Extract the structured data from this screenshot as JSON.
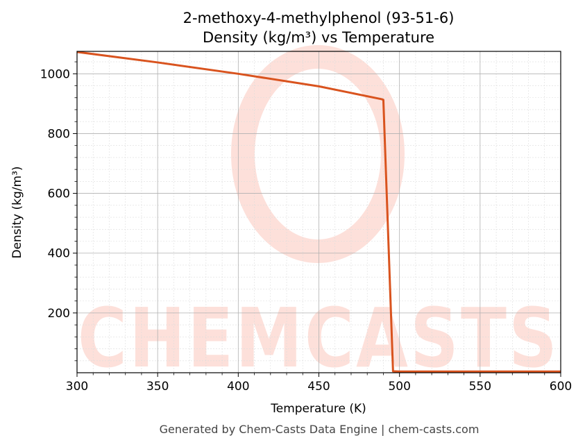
{
  "chart_data": {
    "type": "line",
    "title_line1": "2-methoxy-4-methylphenol (93-51-6)",
    "title_line2": "Density (kg/m³) vs Temperature",
    "xlabel": "Temperature (K)",
    "ylabel": "Density (kg/m³)",
    "xlim": [
      300,
      600
    ],
    "ylim": [
      0,
      1075
    ],
    "xticks": [
      300,
      350,
      400,
      450,
      500,
      550,
      600
    ],
    "yticks": [
      200,
      400,
      600,
      800,
      1000
    ],
    "grid": true,
    "line_color": "#d9531e",
    "series": [
      {
        "x": [
          300,
          350,
          400,
          450,
          489,
          490,
          496,
          500,
          550,
          600
        ],
        "y": [
          1073,
          1038,
          1000,
          958,
          915,
          913,
          5,
          4,
          4,
          4
        ]
      }
    ]
  },
  "footer": "Generated by Chem-Casts Data Engine | chem-casts.com",
  "watermark": "CHEMCASTS",
  "colors": {
    "watermark": "#fde0da",
    "grid": "#b0b0b0"
  }
}
